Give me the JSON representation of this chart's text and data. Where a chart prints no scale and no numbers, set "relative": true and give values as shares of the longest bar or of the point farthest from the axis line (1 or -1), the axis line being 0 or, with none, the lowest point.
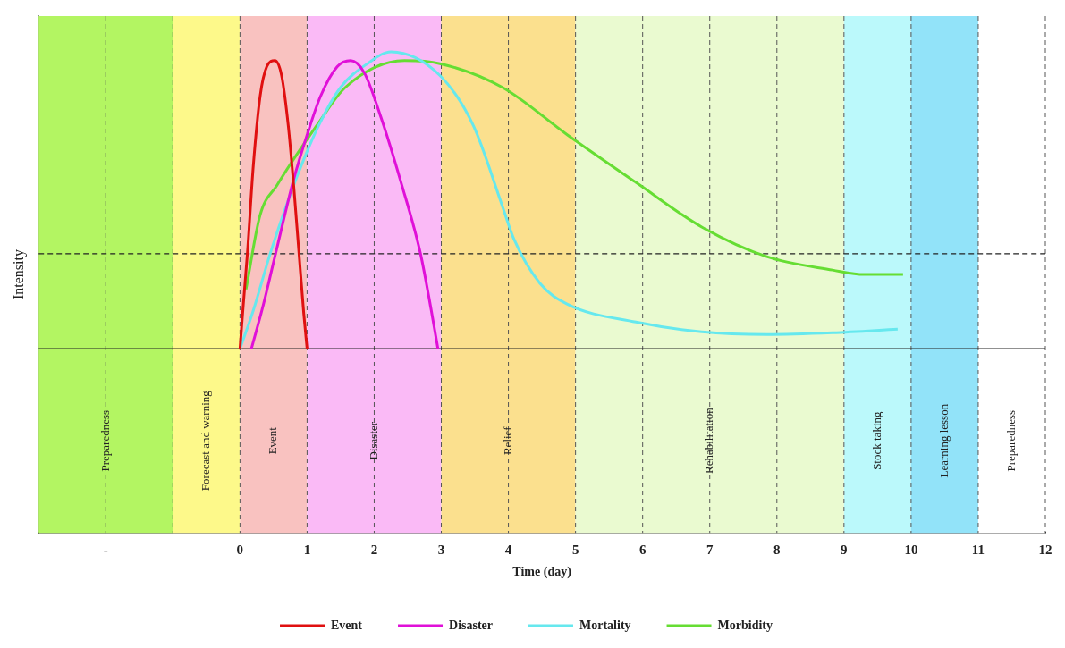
{
  "chart_data": {
    "type": "line",
    "relative": true,
    "xlabel": "Time (day)",
    "ylabel": "Intensity",
    "xlim": [
      -3,
      12
    ],
    "xticks": [
      {
        "value": -2,
        "label": "-"
      },
      0,
      1,
      2,
      3,
      4,
      5,
      6,
      7,
      8,
      9,
      10,
      11,
      12
    ],
    "grid": "x",
    "legend": "bottom",
    "marker": "none",
    "line_style": "solid",
    "bands": [
      {
        "axis": "x",
        "from": -3,
        "to": -1,
        "label": "Preparedness",
        "color": "#b3f562"
      },
      {
        "axis": "x",
        "from": -1,
        "to": 0,
        "label": "Forecast and warning",
        "color": "#fdf98a"
      },
      {
        "axis": "x",
        "from": 0,
        "to": 1,
        "label": "Event",
        "color": "#f9c2c0"
      },
      {
        "axis": "x",
        "from": 1,
        "to": 3,
        "label": "Disaster",
        "color": "#fabaf6"
      },
      {
        "axis": "x",
        "from": 3,
        "to": 5,
        "label": "Relief",
        "color": "#fbe08e"
      },
      {
        "axis": "x",
        "from": 5,
        "to": 9,
        "label": "Rehabilitation",
        "color": "#eafad0"
      },
      {
        "axis": "x",
        "from": 9,
        "to": 10,
        "label": "Stock taking",
        "color": "#bbf9fb"
      },
      {
        "axis": "x",
        "from": 10,
        "to": 11,
        "label": "Learning lesson",
        "color": "#92e3f9"
      },
      {
        "axis": "x",
        "from": 11,
        "to": 12,
        "label": "Preparedness",
        "color": "#ffffff"
      }
    ],
    "ref_lines": [
      {
        "axis": "y",
        "value": 0.32,
        "line_style": "dashed",
        "color": "#222222"
      }
    ],
    "series": [
      {
        "name": "Event",
        "color": "#e01010",
        "x": [
          0,
          0.05,
          0.11,
          0.2,
          0.3,
          0.4,
          0.52,
          0.62,
          0.72,
          0.8,
          0.88,
          0.95,
          1
        ],
        "values": [
          0,
          0.15,
          0.32,
          0.62,
          0.85,
          0.95,
          0.97,
          0.92,
          0.75,
          0.55,
          0.32,
          0.12,
          0
        ]
      },
      {
        "name": "Disaster",
        "color": "#e010d8",
        "x": [
          0.17,
          0.35,
          0.53,
          0.8,
          1.0,
          1.2,
          1.45,
          1.65,
          1.85,
          2.1,
          2.4,
          2.69,
          2.85,
          2.95
        ],
        "values": [
          0,
          0.15,
          0.32,
          0.57,
          0.72,
          0.85,
          0.95,
          0.97,
          0.93,
          0.78,
          0.56,
          0.32,
          0.13,
          0
        ]
      },
      {
        "name": "Mortality",
        "color": "#66e8ee",
        "x": [
          0,
          0.2,
          0.45,
          0.8,
          1.17,
          1.5,
          1.9,
          2.25,
          2.98,
          3.48,
          3.91,
          4.08,
          4.47,
          4.88,
          5.9,
          6.88,
          7.85,
          8.83,
          9.8
        ],
        "values": [
          0,
          0.13,
          0.32,
          0.55,
          0.75,
          0.88,
          0.96,
          1,
          0.92,
          0.75,
          0.48,
          0.37,
          0.22,
          0.15,
          0.09,
          0.057,
          0.048,
          0.054,
          0.066
        ]
      },
      {
        "name": "Morbidity",
        "color": "#66dd33",
        "x": [
          0.09,
          0.3,
          0.55,
          1.17,
          1.57,
          2.45,
          2.98,
          3.91,
          4.88,
          5.9,
          6.88,
          7.85,
          8.83,
          9.3,
          9.88
        ],
        "values": [
          0.2,
          0.45,
          0.55,
          0.76,
          0.88,
          0.97,
          0.96,
          0.88,
          0.72,
          0.56,
          0.41,
          0.31,
          0.265,
          0.25,
          0.25
        ]
      }
    ]
  }
}
